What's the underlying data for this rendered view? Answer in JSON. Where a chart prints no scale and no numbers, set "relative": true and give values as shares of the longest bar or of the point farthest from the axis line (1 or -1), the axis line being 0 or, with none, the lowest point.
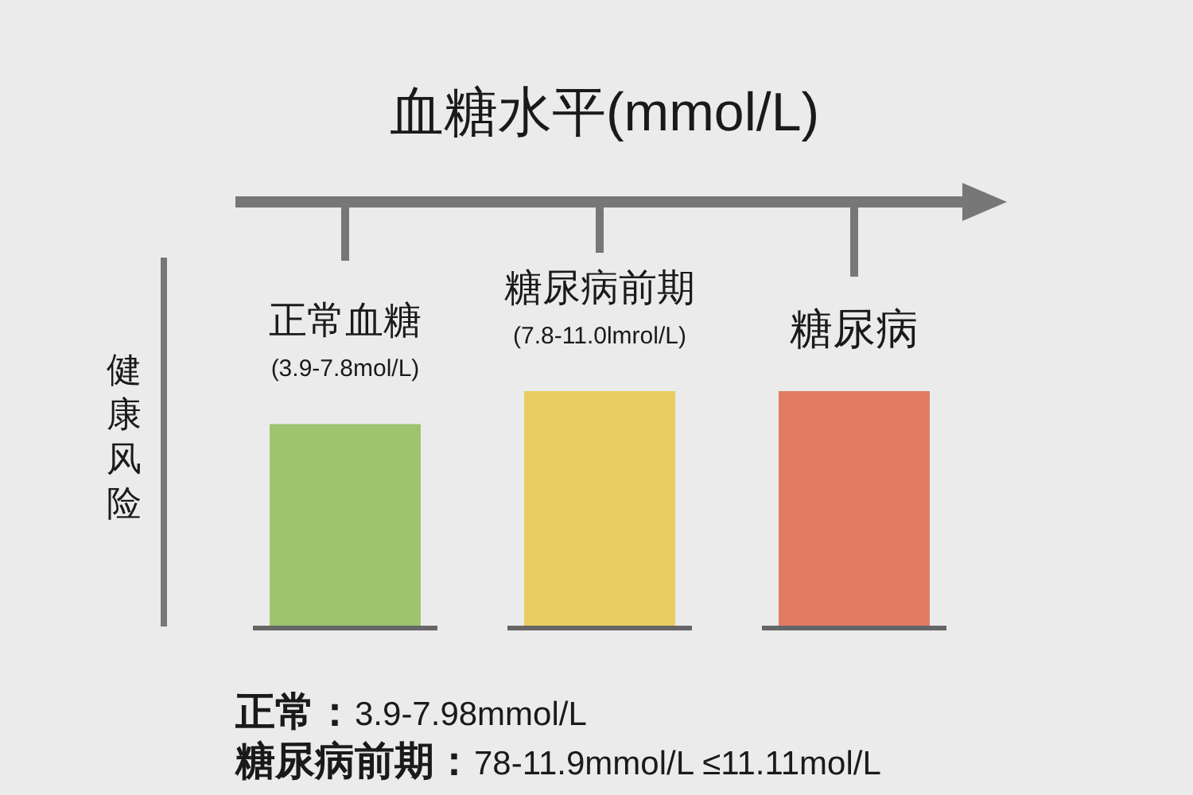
{
  "chart_data": {
    "type": "bar",
    "relative": true,
    "grid": "y",
    "title": "血糖水平(mmol/L)",
    "ylabel": "健康风险",
    "categories": [
      "正常血糖\n(3.9-7.8mol/L)",
      "糖尿病前期\n(7.8-11.0lmrol/L)",
      "糖尿病"
    ],
    "values": [
      0.86,
      1,
      1
    ],
    "colors": [
      "#9dc46f",
      "#e8cd62",
      "#e27a64"
    ],
    "annotations": [
      "正常：3.9-7.98mmol/L",
      "糖尿病前期：78-11.9mmol/L ≤11.11mol/L"
    ]
  }
}
